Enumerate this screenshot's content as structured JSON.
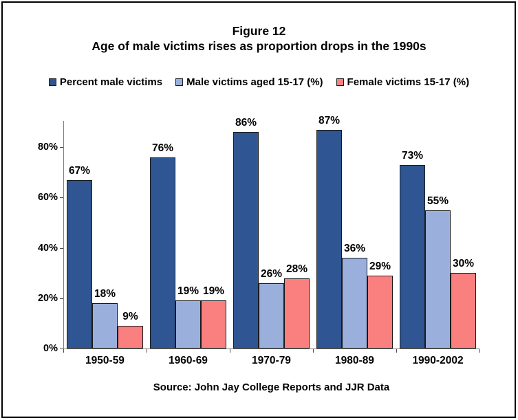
{
  "header": {
    "figure_label": "Figure 12",
    "title": "Age of male victims rises as proportion drops in the 1990s"
  },
  "footer": {
    "source": "Source: John Jay College Reports and JJR Data"
  },
  "colors": {
    "percent_male_victims": "#2F5592",
    "male_victims_15_17": "#9AAFDC",
    "female_victims_15_17": "#FA8080",
    "bar_border": "#1a1a1a",
    "axis": "#808080"
  },
  "chart_data": {
    "type": "bar",
    "title": "Figure 12",
    "subtitle": "Age of male victims rises as proportion drops in the 1990s",
    "categories": [
      "1950-59",
      "1960-69",
      "1970-79",
      "1980-89",
      "1990-2002"
    ],
    "series": [
      {
        "name": "Percent male victims",
        "color": "#2F5592",
        "values": [
          67,
          76,
          86,
          87,
          73
        ]
      },
      {
        "name": "Male victims aged 15-17 (%)",
        "color": "#9AAFDC",
        "values": [
          18,
          19,
          26,
          36,
          55
        ]
      },
      {
        "name": "Female victims 15-17 (%)",
        "color": "#FA8080",
        "values": [
          9,
          19,
          28,
          29,
          30
        ]
      }
    ],
    "data_labels": [
      [
        "67%",
        "76%",
        "86%",
        "87%",
        "73%"
      ],
      [
        "18%",
        "19%",
        "26%",
        "36%",
        "55%"
      ],
      [
        "9%",
        "19%",
        "28%",
        "29%",
        "30%"
      ]
    ],
    "xlabel": "",
    "ylabel": "",
    "y_ticks": [
      0,
      20,
      40,
      60,
      80
    ],
    "y_tick_labels": [
      "0%",
      "20%",
      "40%",
      "60%",
      "80%"
    ],
    "ylim": [
      0,
      90.4
    ],
    "grid": false,
    "legend_position": "top",
    "source": "Source: John Jay College Reports and JJR Data"
  }
}
